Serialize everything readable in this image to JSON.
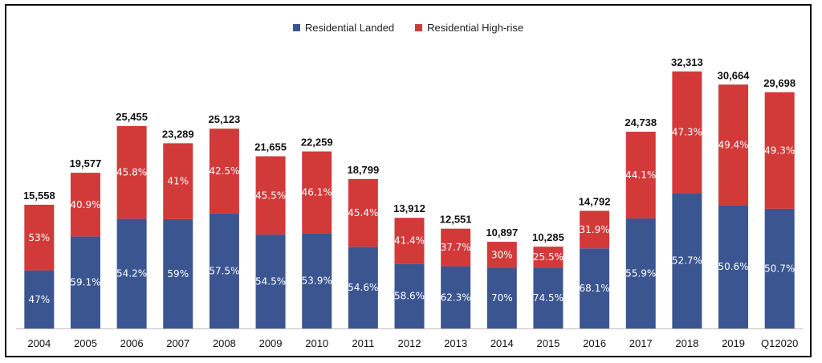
{
  "chart_data": {
    "type": "bar",
    "stacked": true,
    "stack_mode": "percent-labels",
    "categories": [
      "2004",
      "2005",
      "2006",
      "2007",
      "2008",
      "2009",
      "2010",
      "2011",
      "2012",
      "2013",
      "2014",
      "2015",
      "2016",
      "2017",
      "2018",
      "2019",
      "Q12020"
    ],
    "totals": [
      15558,
      19577,
      25455,
      23289,
      25123,
      21655,
      22259,
      18799,
      13912,
      12551,
      10897,
      10285,
      14792,
      24738,
      32313,
      30664,
      29698
    ],
    "total_labels": [
      "15,558",
      "19,577",
      "25,455",
      "23,289",
      "25,123",
      "21,655",
      "22,259",
      "18,799",
      "13,912",
      "12,551",
      "10,897",
      "10,285",
      "14,792",
      "24,738",
      "32,313",
      "30,664",
      "29,698"
    ],
    "series": [
      {
        "name": "Residential Landed",
        "color": "#3b5590",
        "values": [
          47,
          59.1,
          54.2,
          59,
          57.5,
          54.5,
          53.9,
          54.6,
          58.6,
          62.3,
          70,
          74.5,
          68.1,
          55.9,
          52.7,
          50.6,
          50.7
        ],
        "labels": [
          "47%",
          "59.1%",
          "54.2%",
          "59%",
          "57.5%",
          "54.5%",
          "53.9%",
          "54.6%",
          "58.6%",
          "62.3%",
          "70%",
          "74.5%",
          "68.1%",
          "55.9%",
          "52.7%",
          "50.6%",
          "50.7%"
        ]
      },
      {
        "name": "Residential High-rise",
        "color": "#d23a3a",
        "values": [
          53,
          40.9,
          45.8,
          41,
          42.5,
          45.5,
          46.1,
          45.4,
          41.4,
          37.7,
          30,
          25.5,
          31.9,
          44.1,
          47.3,
          49.4,
          49.3
        ],
        "labels": [
          "53%",
          "40.9%",
          "45.8%",
          "41%",
          "42.5%",
          "45.5%",
          "46.1%",
          "45.4%",
          "41.4%",
          "37.7%",
          "30%",
          "25.5%",
          "31.9%",
          "44.1%",
          "47.3%",
          "49.4%",
          "49.3%"
        ]
      }
    ],
    "legend_position": "top-center",
    "grid": false
  }
}
